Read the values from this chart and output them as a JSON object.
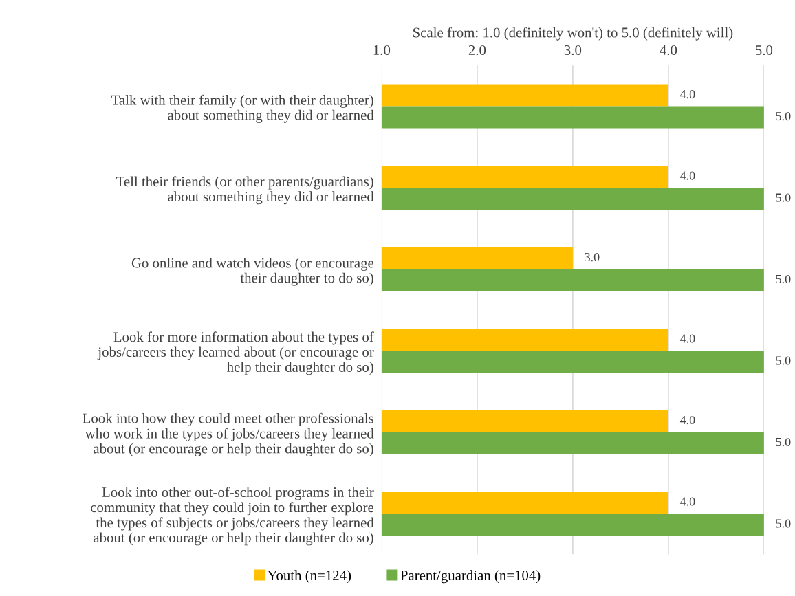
{
  "chart_data": {
    "type": "bar",
    "orientation": "horizontal",
    "xlabel": "Scale from: 1.0 (definitely won't) to 5.0 (definitely will)",
    "categories": [
      "Talk with their family (or with their daughter)\nabout something they did or learned",
      "Tell their friends (or other parents/guardians)\nabout something they did or learned",
      "Go online and watch videos (or encourage\ntheir daughter to do so)",
      "Look for more information about the types of\njobs/careers they learned about (or encourage or\nhelp their daughter do so)",
      "Look into how they could meet other professionals\nwho work in the types of jobs/careers they learned\nabout (or encourage or help their daughter do so)",
      "Look into other out-of-school programs in their\ncommunity that they could join to further explore\nthe types of subjects or jobs/careers they learned\nabout (or encourage or help their daughter do so)"
    ],
    "series": [
      {
        "name": "Youth (n=124)",
        "color": "#ffc000",
        "values": [
          4.0,
          4.0,
          3.0,
          4.0,
          4.0,
          4.0
        ],
        "value_labels": [
          "4.0",
          "4.0",
          "3.0",
          "4.0",
          "4.0",
          "4.0"
        ]
      },
      {
        "name": "Parent/guardian (n=104)",
        "color": "#70ad47",
        "values": [
          5.0,
          5.0,
          5.0,
          5.0,
          5.0,
          5.0
        ],
        "value_labels": [
          "5.0",
          "5.0",
          "5.0",
          "5.0",
          "5.0",
          "5.0"
        ]
      }
    ],
    "xlim": [
      1.0,
      5.0
    ],
    "xticks": [
      {
        "value": 1,
        "label": "1.0"
      },
      {
        "value": 2,
        "label": "2.0"
      },
      {
        "value": 3,
        "label": "3.0"
      },
      {
        "value": 4,
        "label": "4.0"
      },
      {
        "value": 5,
        "label": "5.0"
      }
    ],
    "grid": "x",
    "legend": "bottom"
  }
}
